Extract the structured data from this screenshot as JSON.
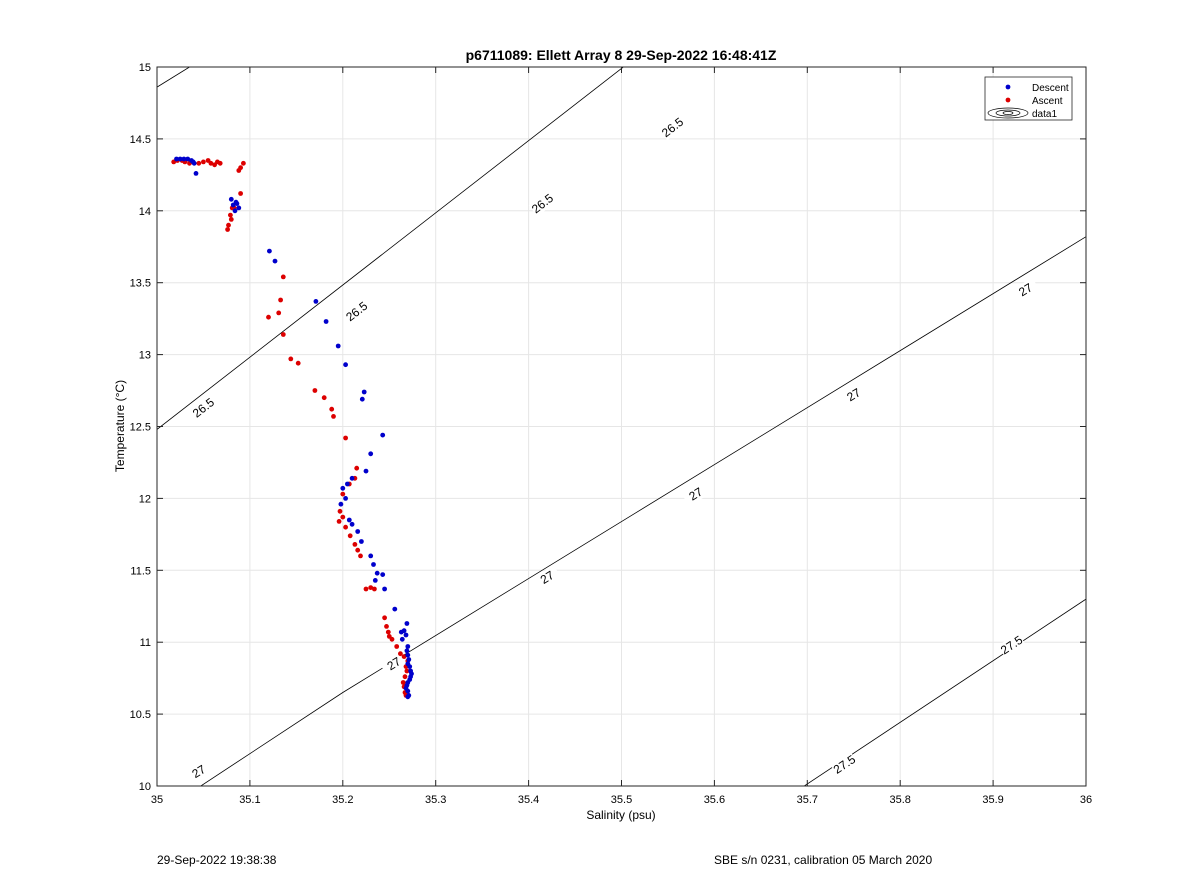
{
  "chart_data": {
    "type": "scatter",
    "title": "p6711089: Ellett Array 8 29-Sep-2022 16:48:41Z",
    "xlabel": "Salinity (psu)",
    "ylabel": "Temperature (°C)",
    "xlim": [
      35,
      36
    ],
    "ylim": [
      10,
      15
    ],
    "xticks": [
      "35",
      "35.1",
      "35.2",
      "35.3",
      "35.4",
      "35.5",
      "35.6",
      "35.7",
      "35.8",
      "35.9",
      "36"
    ],
    "yticks": [
      "10",
      "10.5",
      "11",
      "11.5",
      "12",
      "12.5",
      "13",
      "13.5",
      "14",
      "14.5",
      "15"
    ],
    "grid": true,
    "legend_position": "top-right",
    "legend": [
      "Descent",
      "Ascent",
      "data1"
    ],
    "series": [
      {
        "name": "Descent",
        "color": "#0000cc",
        "points": [
          [
            35.021,
            14.36
          ],
          [
            35.025,
            14.36
          ],
          [
            35.029,
            14.36
          ],
          [
            35.033,
            14.36
          ],
          [
            35.037,
            14.35
          ],
          [
            35.039,
            14.34
          ],
          [
            35.04,
            14.33
          ],
          [
            35.042,
            14.26
          ],
          [
            35.08,
            14.08
          ],
          [
            35.082,
            14.04
          ],
          [
            35.084,
            14.0
          ],
          [
            35.086,
            14.05
          ],
          [
            35.088,
            14.02
          ],
          [
            35.085,
            14.06
          ],
          [
            35.121,
            13.72
          ],
          [
            35.127,
            13.65
          ],
          [
            35.171,
            13.37
          ],
          [
            35.182,
            13.23
          ],
          [
            35.195,
            13.06
          ],
          [
            35.203,
            12.93
          ],
          [
            35.223,
            12.74
          ],
          [
            35.221,
            12.69
          ],
          [
            35.243,
            12.44
          ],
          [
            35.23,
            12.31
          ],
          [
            35.225,
            12.19
          ],
          [
            35.21,
            12.14
          ],
          [
            35.205,
            12.1
          ],
          [
            35.2,
            12.07
          ],
          [
            35.203,
            12.0
          ],
          [
            35.198,
            11.96
          ],
          [
            35.207,
            11.85
          ],
          [
            35.21,
            11.82
          ],
          [
            35.216,
            11.77
          ],
          [
            35.22,
            11.7
          ],
          [
            35.23,
            11.6
          ],
          [
            35.233,
            11.54
          ],
          [
            35.237,
            11.48
          ],
          [
            35.243,
            11.47
          ],
          [
            35.235,
            11.43
          ],
          [
            35.245,
            11.37
          ],
          [
            35.256,
            11.23
          ],
          [
            35.269,
            11.13
          ],
          [
            35.266,
            11.08
          ],
          [
            35.263,
            11.07
          ],
          [
            35.268,
            11.05
          ],
          [
            35.264,
            11.02
          ],
          [
            35.27,
            10.97
          ],
          [
            35.269,
            10.94
          ],
          [
            35.27,
            10.91
          ],
          [
            35.271,
            10.88
          ],
          [
            35.27,
            10.85
          ],
          [
            35.272,
            10.83
          ],
          [
            35.273,
            10.8
          ],
          [
            35.274,
            10.78
          ],
          [
            35.273,
            10.76
          ],
          [
            35.272,
            10.74
          ],
          [
            35.27,
            10.72
          ],
          [
            35.269,
            10.7
          ],
          [
            35.268,
            10.68
          ],
          [
            35.27,
            10.66
          ],
          [
            35.271,
            10.63
          ],
          [
            35.27,
            10.62
          ]
        ]
      },
      {
        "name": "Ascent",
        "color": "#dd0000",
        "points": [
          [
            35.018,
            14.34
          ],
          [
            35.022,
            14.35
          ],
          [
            35.027,
            14.35
          ],
          [
            35.03,
            14.34
          ],
          [
            35.035,
            14.33
          ],
          [
            35.045,
            14.33
          ],
          [
            35.05,
            14.34
          ],
          [
            35.055,
            14.35
          ],
          [
            35.058,
            14.33
          ],
          [
            35.062,
            14.32
          ],
          [
            35.065,
            14.34
          ],
          [
            35.068,
            14.33
          ],
          [
            35.088,
            14.28
          ],
          [
            35.09,
            14.3
          ],
          [
            35.093,
            14.33
          ],
          [
            35.09,
            14.12
          ],
          [
            35.081,
            14.02
          ],
          [
            35.079,
            13.97
          ],
          [
            35.08,
            13.94
          ],
          [
            35.077,
            13.9
          ],
          [
            35.076,
            13.87
          ],
          [
            35.083,
            14.02
          ],
          [
            35.136,
            13.54
          ],
          [
            35.133,
            13.38
          ],
          [
            35.131,
            13.29
          ],
          [
            35.12,
            13.26
          ],
          [
            35.136,
            13.14
          ],
          [
            35.144,
            12.97
          ],
          [
            35.152,
            12.94
          ],
          [
            35.17,
            12.75
          ],
          [
            35.18,
            12.7
          ],
          [
            35.188,
            12.62
          ],
          [
            35.19,
            12.57
          ],
          [
            35.203,
            12.42
          ],
          [
            35.215,
            12.21
          ],
          [
            35.213,
            12.14
          ],
          [
            35.207,
            12.1
          ],
          [
            35.2,
            12.03
          ],
          [
            35.197,
            11.91
          ],
          [
            35.2,
            11.87
          ],
          [
            35.196,
            11.84
          ],
          [
            35.203,
            11.8
          ],
          [
            35.208,
            11.74
          ],
          [
            35.213,
            11.68
          ],
          [
            35.216,
            11.64
          ],
          [
            35.219,
            11.6
          ],
          [
            35.225,
            11.37
          ],
          [
            35.23,
            11.38
          ],
          [
            35.234,
            11.37
          ],
          [
            35.245,
            11.17
          ],
          [
            35.247,
            11.11
          ],
          [
            35.249,
            11.07
          ],
          [
            35.25,
            11.04
          ],
          [
            35.253,
            11.02
          ],
          [
            35.258,
            10.97
          ],
          [
            35.262,
            10.92
          ],
          [
            35.266,
            10.9
          ],
          [
            35.27,
            10.87
          ],
          [
            35.268,
            10.83
          ],
          [
            35.269,
            10.8
          ],
          [
            35.267,
            10.76
          ],
          [
            35.265,
            10.72
          ],
          [
            35.266,
            10.69
          ],
          [
            35.267,
            10.65
          ],
          [
            35.268,
            10.63
          ]
        ]
      }
    ],
    "contours": [
      {
        "level": "26.5",
        "lines": [
          [
            [
              35.0,
              12.48
            ],
            [
              36.0,
              17.5
            ]
          ]
        ],
        "labels": [
          [
            35.05,
            12.63
          ],
          [
            35.215,
            13.3
          ],
          [
            35.415,
            14.05
          ],
          [
            35.555,
            14.58
          ]
        ]
      },
      {
        "level": "27",
        "lines": [
          [
            [
              35.0,
              9.8
            ],
            [
              35.2,
              10.65
            ],
            [
              36.0,
              13.82
            ]
          ]
        ],
        "labels": [
          [
            35.045,
            10.1
          ],
          [
            35.255,
            10.85
          ],
          [
            35.42,
            11.45
          ],
          [
            35.58,
            12.03
          ],
          [
            35.75,
            12.72
          ],
          [
            35.935,
            13.45
          ]
        ]
      },
      {
        "level": "27.5",
        "lines": [
          [
            [
              35.65,
              9.8
            ],
            [
              36.0,
              11.3
            ]
          ]
        ],
        "labels": [
          [
            35.74,
            10.15
          ],
          [
            35.92,
            10.98
          ]
        ]
      }
    ],
    "contour_extra_segment": [
      [
        35.0,
        14.86
      ],
      [
        35.035,
        15.0
      ]
    ]
  },
  "footer": {
    "left": "29-Sep-2022 19:38:38",
    "right": "SBE s/n 0231, calibration 05 March 2020"
  }
}
